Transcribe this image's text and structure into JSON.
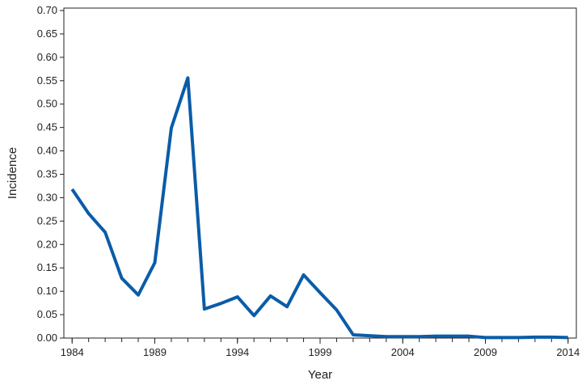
{
  "chart_data": {
    "type": "line",
    "x_label": "Year",
    "y_label": "Incidence",
    "x": [
      1984,
      1985,
      1986,
      1987,
      1988,
      1989,
      1990,
      1991,
      1992,
      1993,
      1994,
      1995,
      1996,
      1997,
      1998,
      1999,
      2000,
      2001,
      2002,
      2003,
      2004,
      2005,
      2006,
      2007,
      2008,
      2009,
      2010,
      2011,
      2012,
      2013,
      2014
    ],
    "series": [
      {
        "name": "Incidence",
        "color": "#0a5ca8",
        "values": [
          0.318,
          0.266,
          0.226,
          0.128,
          0.092,
          0.161,
          0.449,
          0.556,
          0.062,
          0.074,
          0.088,
          0.048,
          0.09,
          0.067,
          0.135,
          0.097,
          0.06,
          0.007,
          0.005,
          0.003,
          0.003,
          0.003,
          0.004,
          0.004,
          0.004,
          0.001,
          0.001,
          0.001,
          0.002,
          0.002,
          0.001
        ]
      }
    ],
    "xlim": [
      1983.5,
      2014.5
    ],
    "xticks": [
      1984,
      1989,
      1994,
      1999,
      2004,
      2009,
      2014
    ],
    "ylim": [
      0,
      0.7
    ],
    "yticks": [
      {
        "value": 0,
        "label": "0.00"
      },
      {
        "value": 0.05,
        "label": "0.05"
      },
      {
        "value": 0.1,
        "label": "0.10"
      },
      {
        "value": 0.15,
        "label": "0.15"
      },
      {
        "value": 0.2,
        "label": "0.20"
      },
      {
        "value": 0.25,
        "label": "0.25"
      },
      {
        "value": 0.3,
        "label": "0.30"
      },
      {
        "value": 0.35,
        "label": "0.35"
      },
      {
        "value": 0.4,
        "label": "0.40"
      },
      {
        "value": 0.45,
        "label": "0.45"
      },
      {
        "value": 0.5,
        "label": "0.50"
      },
      {
        "value": 0.55,
        "label": "0.55"
      },
      {
        "value": 0.6,
        "label": "0.60"
      },
      {
        "value": 0.65,
        "label": "0.65"
      },
      {
        "value": 0.7,
        "label": "0.70"
      }
    ]
  }
}
